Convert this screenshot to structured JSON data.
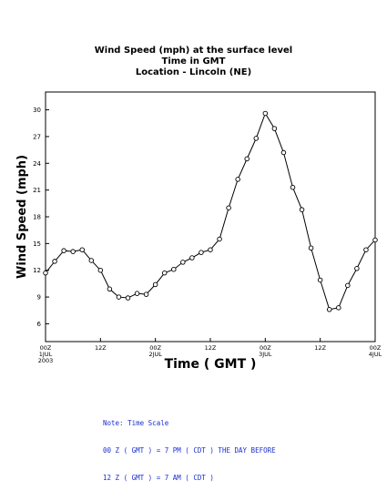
{
  "chart_data": {
    "type": "line",
    "title": "Wind Speed (mph) at the surface level",
    "subtitle_lines": [
      "Time in GMT",
      "Location - Lincoln (NE)"
    ],
    "xlabel": "Time ( GMT )",
    "ylabel": "Wind Speed (mph)",
    "ylim": [
      4,
      32
    ],
    "yticks": [
      6,
      9,
      12,
      15,
      18,
      21,
      24,
      27,
      30
    ],
    "xlim_hours": [
      0,
      72
    ],
    "xticks": [
      {
        "hour": 0,
        "lines": [
          "00Z",
          "1JUL",
          "2003"
        ]
      },
      {
        "hour": 12,
        "lines": [
          "12Z"
        ]
      },
      {
        "hour": 24,
        "lines": [
          "00Z",
          "2JUL"
        ]
      },
      {
        "hour": 36,
        "lines": [
          "12Z"
        ]
      },
      {
        "hour": 48,
        "lines": [
          "00Z",
          "3JUL"
        ]
      },
      {
        "hour": 60,
        "lines": [
          "12Z"
        ]
      },
      {
        "hour": 72,
        "lines": [
          "00Z",
          "4JUL"
        ]
      }
    ],
    "grid": false,
    "series": [
      {
        "x": [
          0,
          2,
          4,
          6,
          8,
          10,
          12,
          14,
          16,
          18,
          20,
          22,
          24,
          26,
          28,
          30,
          32,
          34,
          36,
          38,
          40,
          42,
          44,
          46,
          48,
          50,
          52,
          54,
          56,
          58,
          60,
          62,
          64,
          66,
          68,
          70,
          72
        ],
        "y": [
          11.7,
          13.0,
          14.2,
          14.1,
          14.3,
          13.1,
          12.0,
          9.9,
          9.0,
          8.9,
          9.4,
          9.3,
          10.4,
          11.7,
          12.1,
          12.9,
          13.4,
          14.0,
          14.3,
          15.5,
          19.0,
          22.2,
          24.5,
          26.8,
          29.6,
          27.9,
          25.2,
          21.3,
          18.8,
          14.5,
          10.9,
          7.6,
          7.8,
          10.3,
          12.2,
          14.3,
          15.4
        ]
      }
    ],
    "color": "#000000",
    "note_lines": [
      "Note: Time Scale",
      "00 Z ( GMT ) = 7 PM ( CDT ) THE DAY BEFORE",
      "12 Z ( GMT ) = 7 AM ( CDT )"
    ]
  }
}
